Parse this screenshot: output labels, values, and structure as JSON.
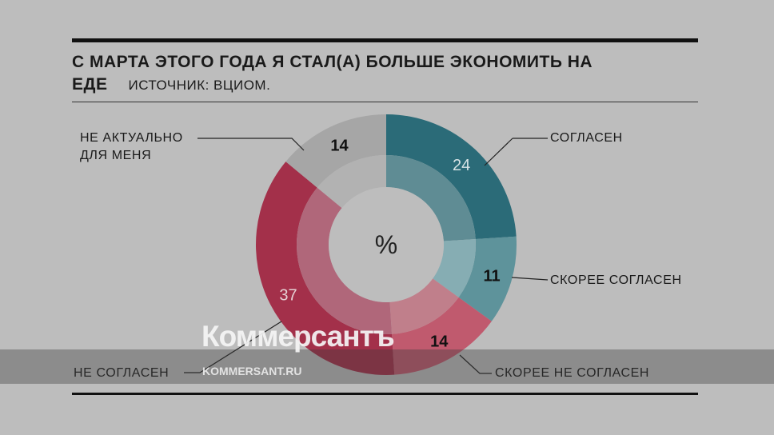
{
  "chart_data": {
    "type": "pie",
    "title": "С МАРТА ЭТОГО ГОДА Я СТАЛ(А) БОЛЬШЕ ЭКОНОМИТЬ НА ЕДЕ",
    "source": "ИСТОЧНИК: ВЦИОМ.",
    "center_label": "%",
    "slices": [
      {
        "label": "СОГЛАСЕН",
        "value": 24,
        "color": "#2b6b78",
        "inner_color": "#5f8c94",
        "value_color": "#d8e4e6"
      },
      {
        "label": "СКОРЕЕ СОГЛАСЕН",
        "value": 11,
        "color": "#5e939b",
        "inner_color": "#86adb3",
        "value_color": "#111111"
      },
      {
        "label": "СКОРЕЕ НЕ СОГЛАСЕН",
        "value": 14,
        "color": "#c05a6e",
        "inner_color": "#c07f8b",
        "value_color": "#111111"
      },
      {
        "label": "НЕ СОГЛАСЕН",
        "value": 37,
        "color": "#a3304a",
        "inner_color": "#b0677a",
        "value_color": "#e6d0d4"
      },
      {
        "label": "НЕ АКТУАЛЬНО ДЛЯ МЕНЯ",
        "label_lines": [
          "НЕ АКТУАЛЬНО",
          "ДЛЯ МЕНЯ"
        ],
        "value": 14,
        "color": "#a6a6a6",
        "inner_color": "#b2b2b2",
        "value_color": "#111111"
      }
    ]
  },
  "watermark": {
    "logo": "Коммерсантъ",
    "site": "KOMMERSANT.RU"
  }
}
